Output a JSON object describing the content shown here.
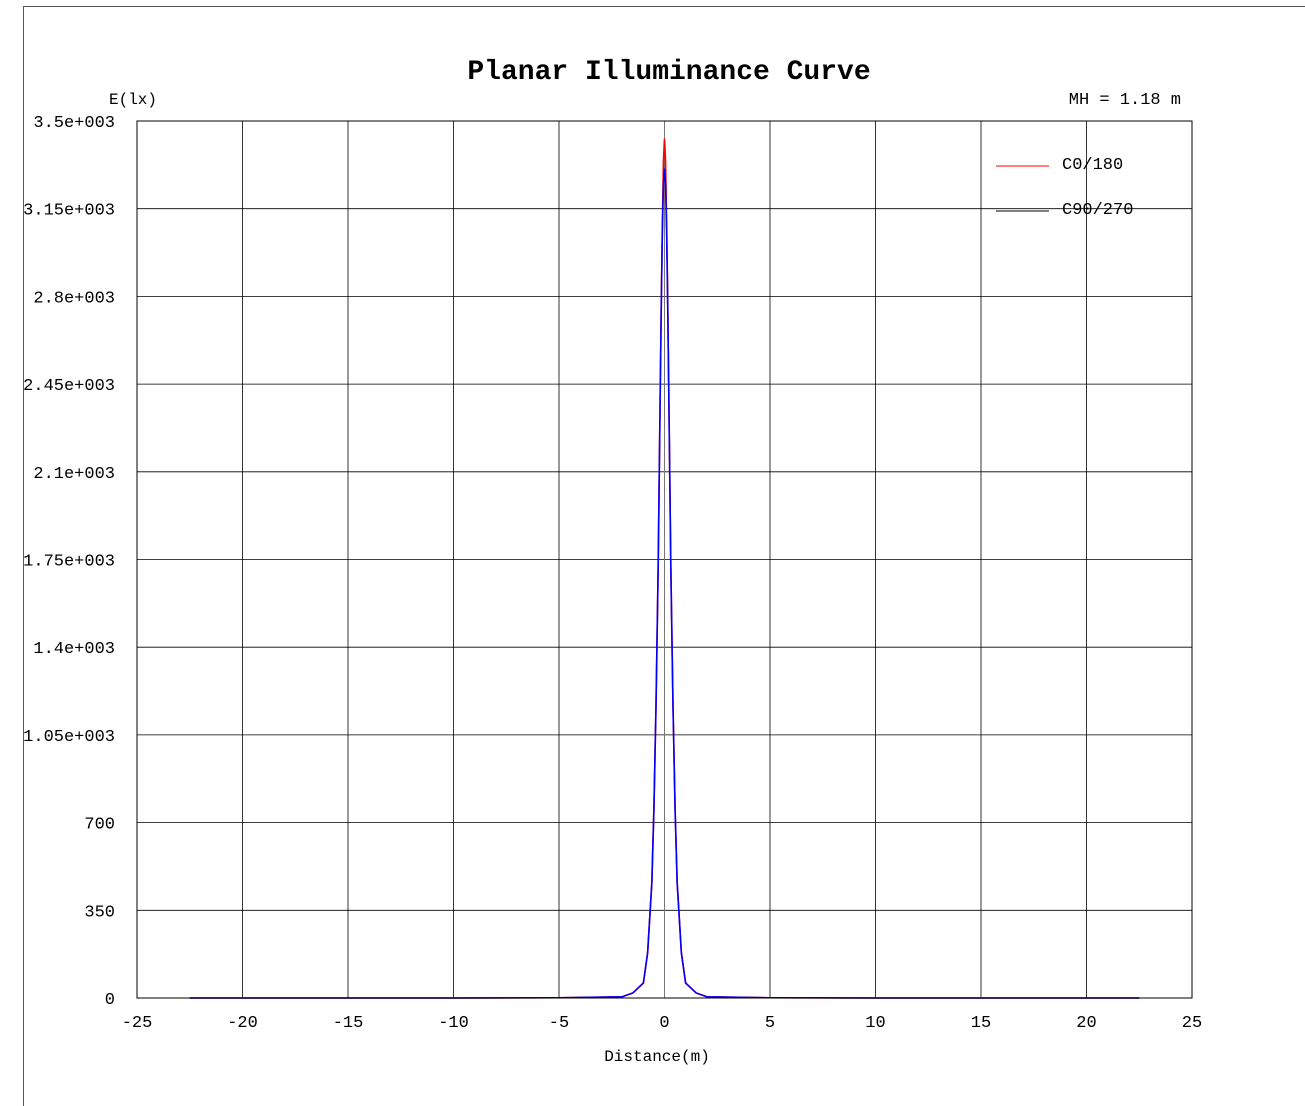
{
  "chart_data": {
    "type": "line",
    "title": "Planar Illuminance Curve",
    "subtitle": "MH = 1.18 m",
    "ylabel": "E(lx)",
    "xlabel": "Distance(m)",
    "xlim": [
      -25,
      25
    ],
    "ylim": [
      0,
      3500
    ],
    "xticks": [
      "-25",
      "-20",
      "-15",
      "-10",
      "-5",
      "0",
      "5",
      "10",
      "15",
      "20",
      "25"
    ],
    "yticks": [
      "3.5e+003",
      "3.15e+003",
      "2.8e+003",
      "2.45e+003",
      "2.1e+003",
      "1.75e+003",
      "1.4e+003",
      "1.05e+003",
      "700",
      "350",
      "0"
    ],
    "grid": true,
    "legend_position": "top-right",
    "series": [
      {
        "name": "C0/180",
        "color": "#ff0000",
        "x": [
          -22.5,
          -10,
          -5,
          -2,
          -1.5,
          -1,
          -0.8,
          -0.6,
          -0.5,
          -0.4,
          -0.3,
          -0.2,
          -0.15,
          -0.1,
          -0.05,
          0,
          0.05,
          0.1,
          0.15,
          0.2,
          0.3,
          0.4,
          0.5,
          0.6,
          0.8,
          1,
          1.5,
          2,
          5,
          10,
          22.5
        ],
        "y": [
          0,
          0,
          1,
          5,
          20,
          60,
          180,
          460,
          760,
          1180,
          1720,
          2440,
          2800,
          3100,
          3340,
          3430,
          3340,
          3100,
          2800,
          2440,
          1720,
          1180,
          760,
          460,
          180,
          60,
          20,
          5,
          1,
          0,
          0
        ]
      },
      {
        "name": "C90/270",
        "color": "#0000ff",
        "x": [
          -22.5,
          -10,
          -5,
          -2,
          -1.5,
          -1,
          -0.8,
          -0.6,
          -0.5,
          -0.4,
          -0.3,
          -0.2,
          -0.15,
          -0.1,
          -0.05,
          0,
          0.05,
          0.1,
          0.15,
          0.2,
          0.3,
          0.4,
          0.5,
          0.6,
          0.8,
          1,
          1.5,
          2,
          5,
          10,
          22.5
        ],
        "y": [
          0,
          0,
          1,
          5,
          20,
          60,
          180,
          460,
          760,
          1180,
          1720,
          2440,
          2780,
          3060,
          3250,
          3310,
          3250,
          3060,
          2780,
          2440,
          1720,
          1180,
          760,
          460,
          180,
          60,
          20,
          5,
          1,
          0,
          0
        ]
      }
    ],
    "legend_line_colors": [
      "#ff0000",
      "#000000"
    ]
  }
}
